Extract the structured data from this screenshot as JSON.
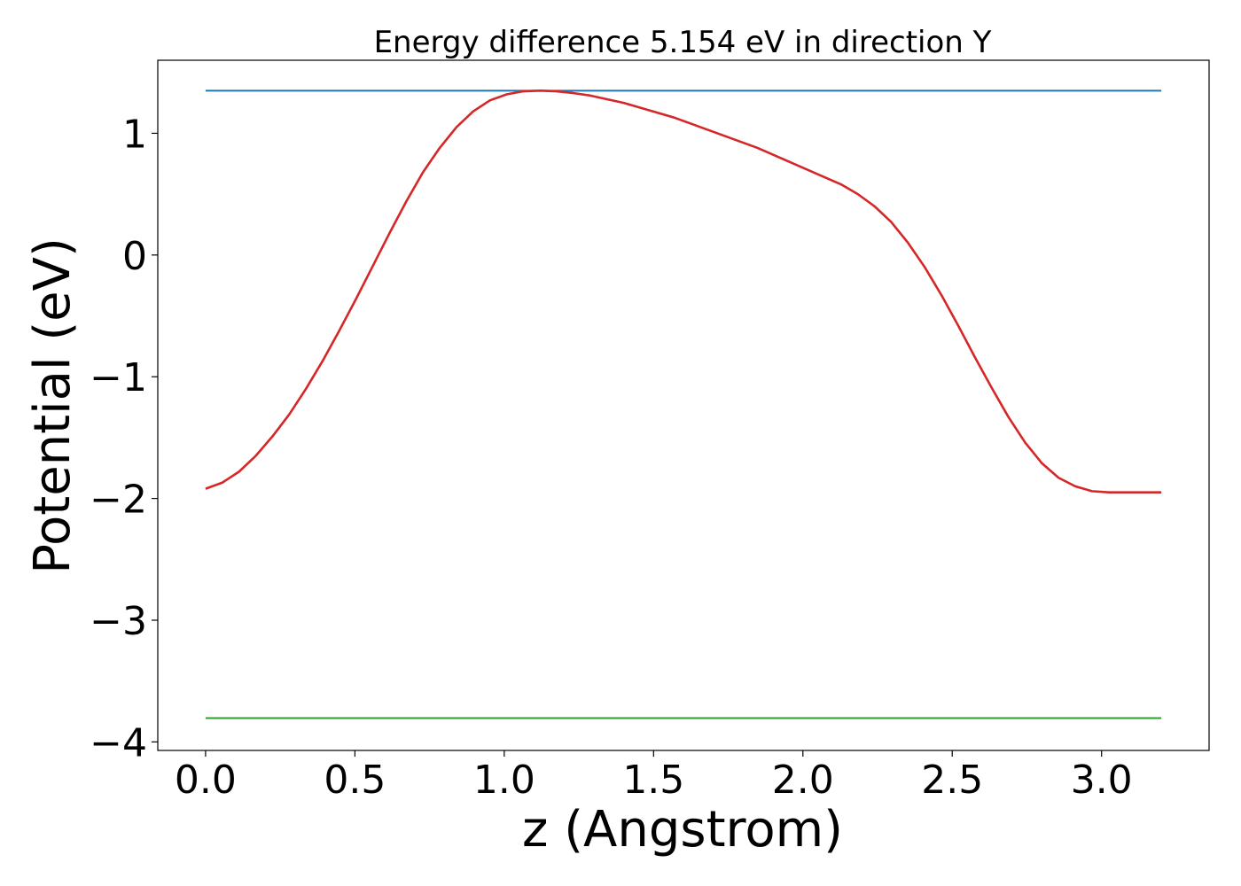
{
  "chart_data": {
    "type": "line",
    "title": "Energy difference 5.154 eV in direction Y",
    "xlabel": "z (Angstrom)",
    "ylabel": "Potential (eV)",
    "xlim": [
      -0.16,
      3.36
    ],
    "ylim": [
      -4.07,
      1.6
    ],
    "x_ticks": [
      0.0,
      0.5,
      1.0,
      1.5,
      2.0,
      2.5,
      3.0
    ],
    "x_tick_labels": [
      "0.0",
      "0.5",
      "1.0",
      "1.5",
      "2.0",
      "2.5",
      "3.0"
    ],
    "y_ticks": [
      1,
      0,
      -1,
      -2,
      -3,
      -4
    ],
    "y_tick_labels": [
      "1",
      "0",
      "−1",
      "−2",
      "−3",
      "−4"
    ],
    "grid": false,
    "legend": "none",
    "series": [
      {
        "color": "#1f77b4",
        "x": [
          0.0,
          3.2
        ],
        "y": [
          1.35,
          1.35
        ]
      },
      {
        "color": "#2ca02c",
        "x": [
          0.0,
          3.2
        ],
        "y": [
          -3.804,
          -3.804
        ]
      },
      {
        "color": "#d62728",
        "x": [
          0.0,
          0.056,
          0.112,
          0.168,
          0.224,
          0.28,
          0.336,
          0.392,
          0.448,
          0.504,
          0.56,
          0.616,
          0.672,
          0.728,
          0.784,
          0.84,
          0.896,
          0.952,
          1.008,
          1.064,
          1.12,
          1.176,
          1.232,
          1.288,
          1.344,
          1.4,
          1.456,
          1.512,
          1.568,
          1.624,
          1.68,
          1.736,
          1.792,
          1.848,
          1.904,
          1.96,
          2.016,
          2.072,
          2.128,
          2.184,
          2.24,
          2.296,
          2.352,
          2.408,
          2.464,
          2.52,
          2.576,
          2.632,
          2.688,
          2.744,
          2.8,
          2.856,
          2.912,
          2.968,
          3.024,
          3.08,
          3.136,
          3.2
        ],
        "y": [
          -1.92,
          -1.87,
          -1.78,
          -1.65,
          -1.49,
          -1.31,
          -1.1,
          -0.87,
          -0.62,
          -0.36,
          -0.09,
          0.18,
          0.44,
          0.68,
          0.88,
          1.05,
          1.18,
          1.27,
          1.32,
          1.345,
          1.35,
          1.345,
          1.33,
          1.31,
          1.28,
          1.25,
          1.21,
          1.17,
          1.13,
          1.08,
          1.03,
          0.98,
          0.93,
          0.88,
          0.82,
          0.76,
          0.7,
          0.64,
          0.58,
          0.5,
          0.4,
          0.27,
          0.1,
          -0.1,
          -0.33,
          -0.58,
          -0.84,
          -1.09,
          -1.33,
          -1.54,
          -1.71,
          -1.83,
          -1.9,
          -1.94,
          -1.95,
          -1.95,
          -1.95,
          -1.95
        ]
      }
    ]
  }
}
